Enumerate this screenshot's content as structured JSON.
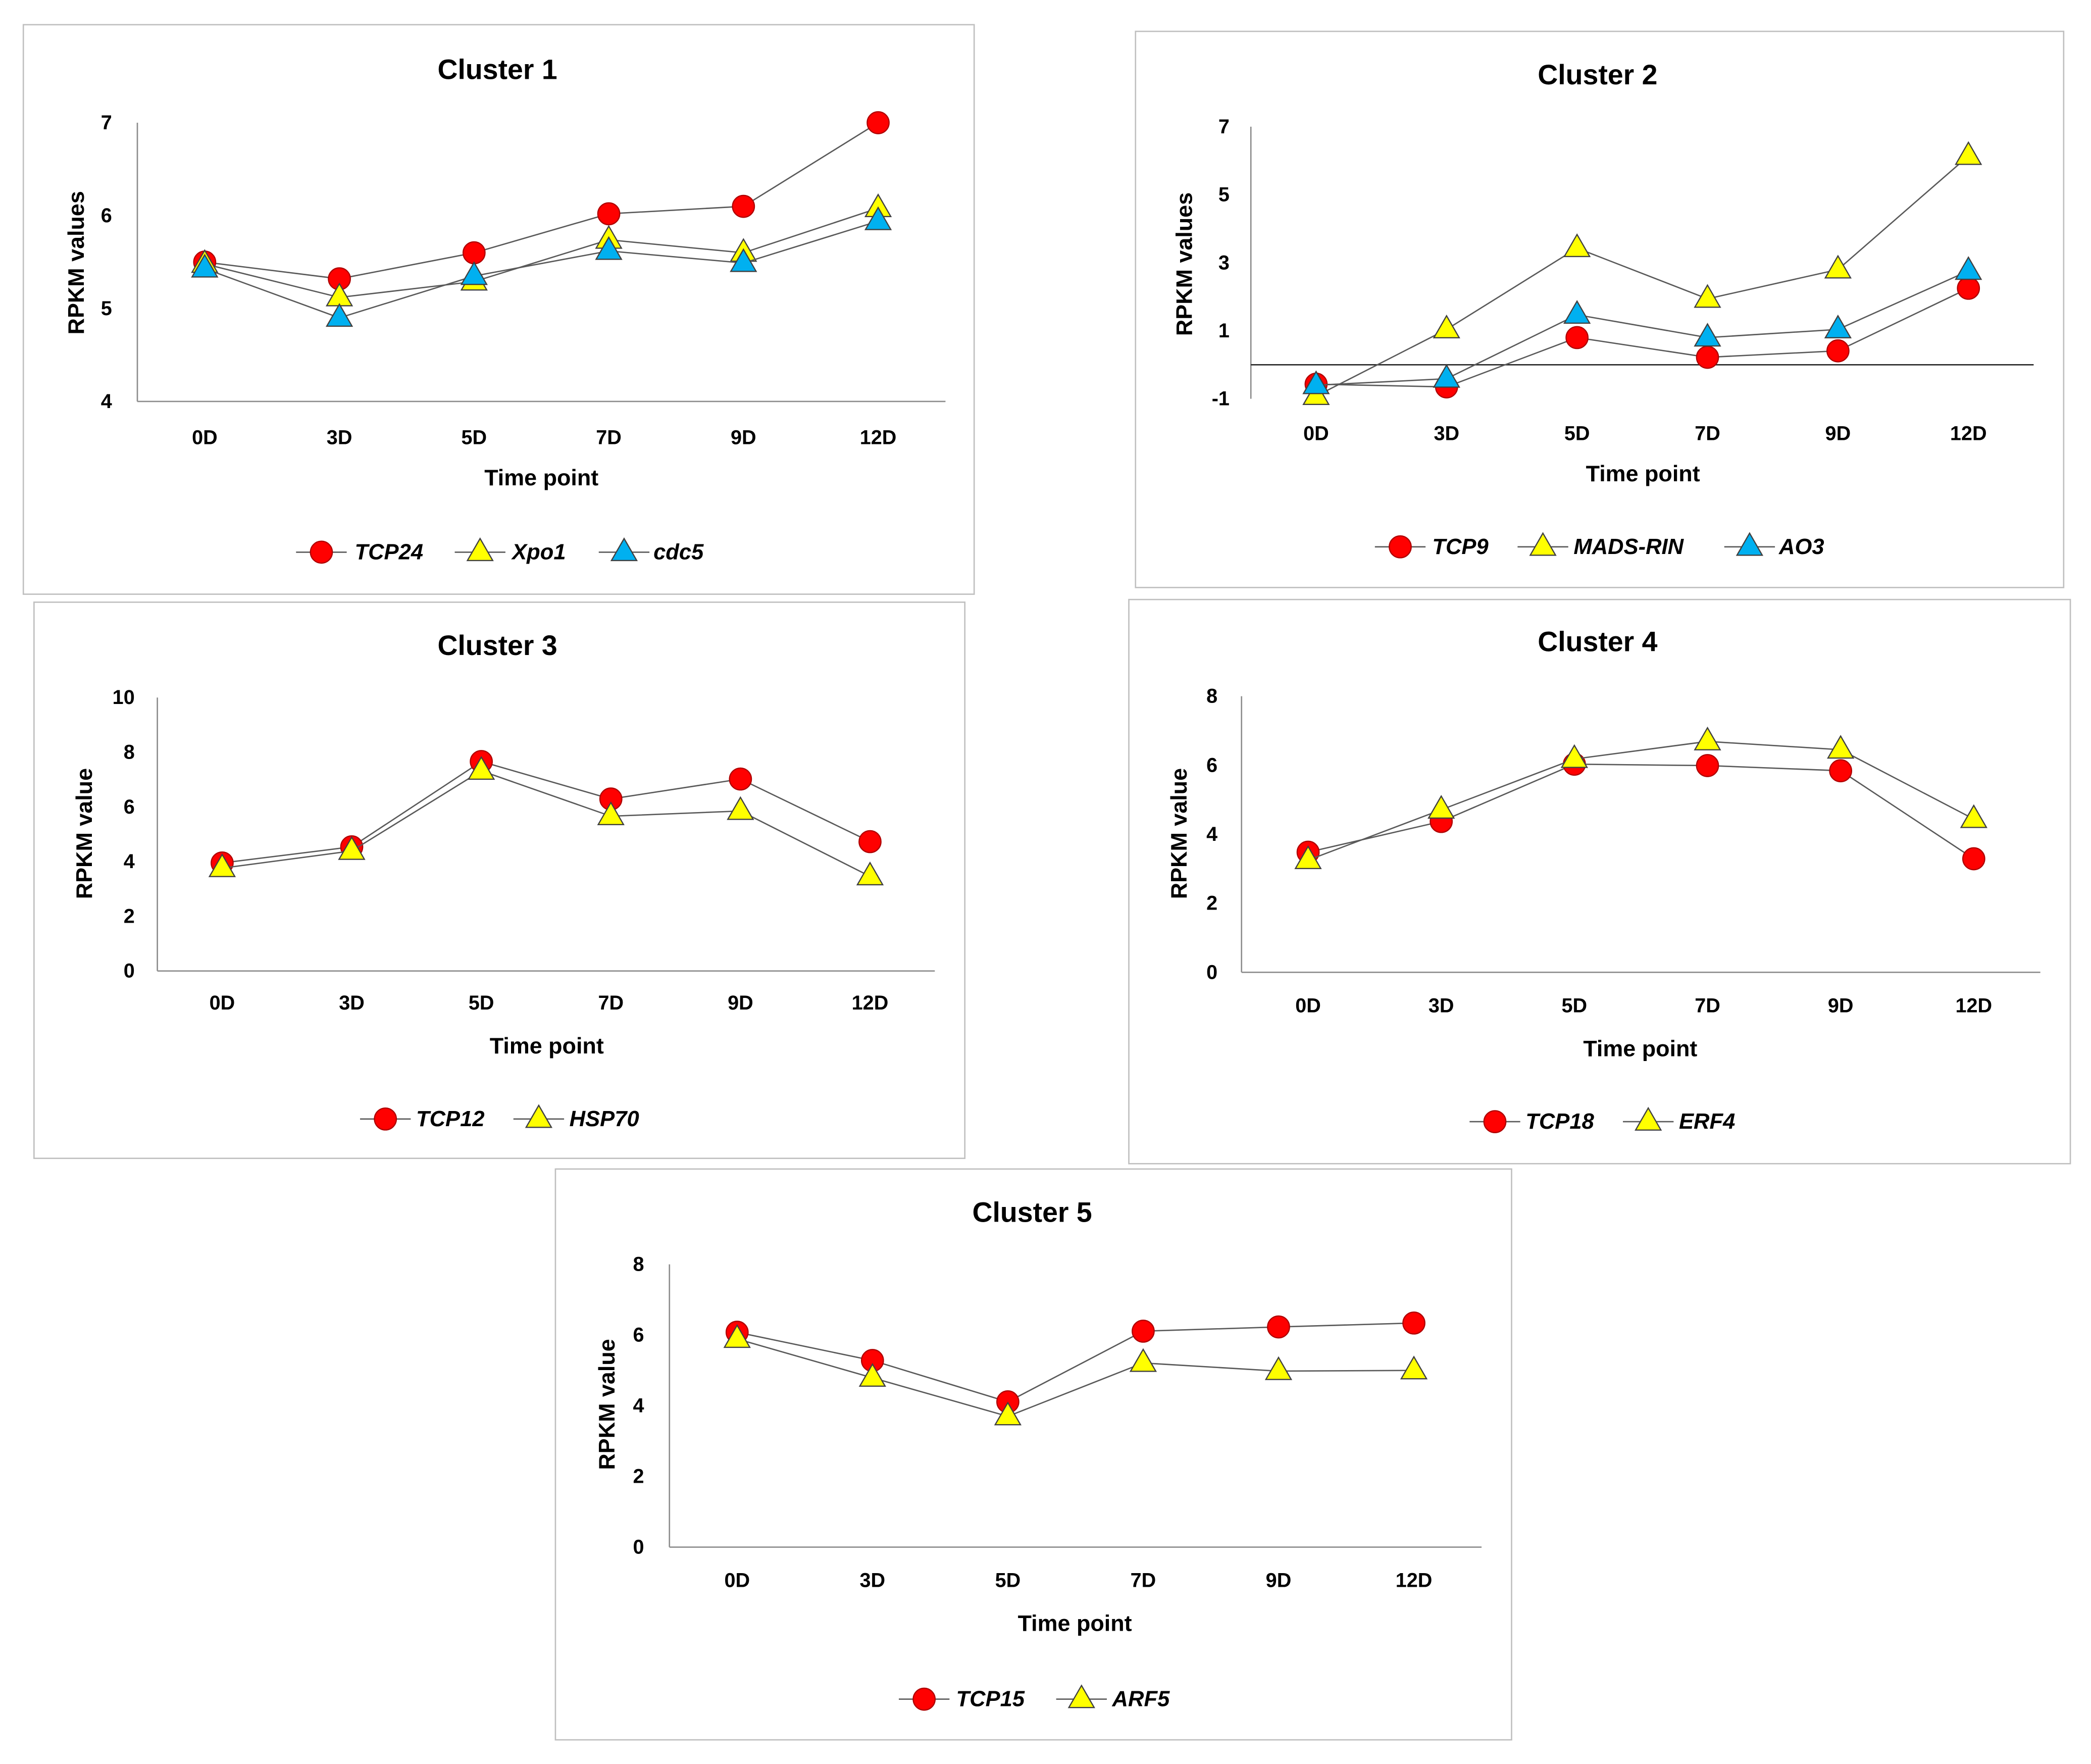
{
  "chart_data": [
    {
      "type": "line",
      "title": "Cluster 1",
      "xlabel": "Time point",
      "ylabel": "RPKM values",
      "categories": [
        "0D",
        "3D",
        "5D",
        "7D",
        "9D",
        "12D"
      ],
      "ylim": [
        4,
        7
      ],
      "yticks": [
        4,
        5,
        6,
        7
      ],
      "grid": false,
      "legend_position": "bottom",
      "series": [
        {
          "name": "TCP24",
          "marker": "circle",
          "color": "#ff0000",
          "edge_color": "#b00000",
          "values": [
            5.5,
            5.32,
            5.6,
            6.02,
            6.1,
            7.0
          ]
        },
        {
          "name": "Xpo1",
          "marker": "triangle",
          "color": "#ffff00",
          "edge_color": "#404040",
          "values": [
            5.48,
            5.12,
            5.29,
            5.74,
            5.6,
            6.08
          ]
        },
        {
          "name": "cdc5",
          "marker": "triangle",
          "color": "#00b0f0",
          "edge_color": "#404040",
          "values": [
            5.43,
            4.9,
            5.35,
            5.62,
            5.49,
            5.94
          ]
        }
      ]
    },
    {
      "type": "line",
      "title": "Cluster 2",
      "xlabel": "Time point",
      "ylabel": "RPKM values",
      "categories": [
        "0D",
        "3D",
        "5D",
        "7D",
        "9D",
        "12D"
      ],
      "ylim": [
        -1,
        7
      ],
      "yticks": [
        -1,
        1,
        3,
        5,
        7
      ],
      "grid": false,
      "legend_position": "bottom",
      "series": [
        {
          "name": "TCP9",
          "marker": "circle",
          "color": "#ff0000",
          "edge_color": "#b00000",
          "values": [
            -0.57,
            -0.65,
            0.8,
            0.22,
            0.41,
            2.25
          ]
        },
        {
          "name": "MADS-RIN",
          "marker": "triangle",
          "color": "#ffff00",
          "edge_color": "#404040",
          "values": [
            -0.92,
            1.04,
            3.43,
            1.94,
            2.8,
            6.14
          ]
        },
        {
          "name": "AO3",
          "marker": "triangle",
          "color": "#00b0f0",
          "edge_color": "#404040",
          "values": [
            -0.6,
            -0.41,
            1.47,
            0.8,
            1.04,
            2.76
          ]
        }
      ]
    },
    {
      "type": "line",
      "title": "Cluster 3",
      "xlabel": "Time point",
      "ylabel": "RPKM value",
      "categories": [
        "0D",
        "3D",
        "5D",
        "7D",
        "9D",
        "12D"
      ],
      "ylim": [
        0,
        10
      ],
      "yticks": [
        0,
        2,
        4,
        6,
        8,
        10
      ],
      "grid": false,
      "legend_position": "bottom",
      "series": [
        {
          "name": "TCP12",
          "marker": "circle",
          "color": "#ff0000",
          "edge_color": "#b00000",
          "values": [
            3.95,
            4.54,
            7.66,
            6.29,
            7.02,
            4.73
          ]
        },
        {
          "name": "HSP70",
          "marker": "triangle",
          "color": "#ffff00",
          "edge_color": "#404040",
          "values": [
            3.76,
            4.39,
            7.32,
            5.66,
            5.85,
            3.46
          ]
        }
      ]
    },
    {
      "type": "line",
      "title": "Cluster 4",
      "xlabel": "Time point",
      "ylabel": "RPKM value",
      "categories": [
        "0D",
        "3D",
        "5D",
        "7D",
        "9D",
        "12D"
      ],
      "ylim": [
        0,
        8
      ],
      "yticks": [
        0,
        2,
        4,
        6,
        8
      ],
      "grid": false,
      "legend_position": "bottom",
      "series": [
        {
          "name": "TCP18",
          "marker": "circle",
          "color": "#ff0000",
          "edge_color": "#b00000",
          "values": [
            3.48,
            4.37,
            6.03,
            5.99,
            5.84,
            3.29
          ]
        },
        {
          "name": "ERF4",
          "marker": "triangle",
          "color": "#ffff00",
          "edge_color": "#404040",
          "values": [
            3.25,
            4.71,
            6.18,
            6.69,
            6.45,
            4.44
          ]
        }
      ]
    },
    {
      "type": "line",
      "title": "Cluster 5",
      "xlabel": "Time point",
      "ylabel": "RPKM value",
      "categories": [
        "0D",
        "3D",
        "5D",
        "7D",
        "9D",
        "12D"
      ],
      "ylim": [
        0,
        8
      ],
      "yticks": [
        0,
        2,
        4,
        6,
        8
      ],
      "grid": false,
      "legend_position": "bottom",
      "series": [
        {
          "name": "TCP15",
          "marker": "circle",
          "color": "#ff0000",
          "edge_color": "#b00000",
          "values": [
            6.08,
            5.28,
            4.11,
            6.11,
            6.23,
            6.34
          ]
        },
        {
          "name": "ARF5",
          "marker": "triangle",
          "color": "#ffff00",
          "edge_color": "#404040",
          "values": [
            5.89,
            4.79,
            3.7,
            5.21,
            4.98,
            5.0
          ]
        }
      ]
    }
  ]
}
